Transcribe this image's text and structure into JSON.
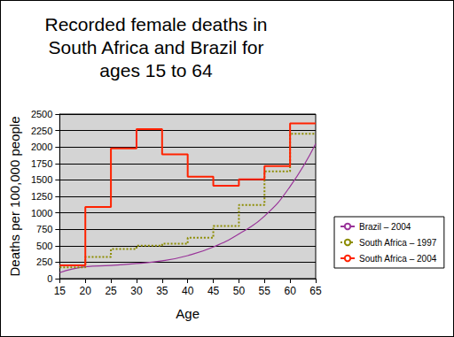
{
  "chart_data": {
    "type": "line",
    "title": "Recorded female deaths in\nSouth Africa and Brazil for\nages 15 to 64",
    "x_label": "Age",
    "y_label": "Deaths per 100,000 people",
    "x": [
      15,
      20,
      25,
      30,
      35,
      40,
      45,
      50,
      55,
      60,
      65
    ],
    "series": [
      {
        "name": "Brazil – 2004",
        "color": "#993399",
        "type": "line",
        "line_style": "solid",
        "marker": "none",
        "values": [
          90,
          180,
          200,
          230,
          270,
          350,
          480,
          680,
          950,
          1400,
          2050
        ]
      },
      {
        "name": "South Africa – 1997",
        "color": "#8c8c00",
        "type": "step",
        "line_style": "dotted",
        "marker": "none",
        "values": [
          170,
          330,
          450,
          500,
          530,
          620,
          800,
          1120,
          1630,
          2200,
          2200
        ]
      },
      {
        "name": "South Africa – 2004",
        "color": "#ff2200",
        "type": "step",
        "line_style": "solid",
        "marker": "none",
        "values": [
          200,
          1090,
          1980,
          2270,
          1890,
          1550,
          1410,
          1510,
          1710,
          2360,
          2360
        ]
      }
    ],
    "xlim": [
      15,
      65
    ],
    "xticks": [
      15,
      20,
      25,
      30,
      35,
      40,
      45,
      50,
      55,
      60,
      65
    ],
    "ylim": [
      0,
      2500
    ],
    "yticks": [
      0,
      250,
      500,
      750,
      1000,
      1250,
      1500,
      1750,
      2000,
      2250,
      2500
    ],
    "grid": true,
    "legend": "right"
  }
}
